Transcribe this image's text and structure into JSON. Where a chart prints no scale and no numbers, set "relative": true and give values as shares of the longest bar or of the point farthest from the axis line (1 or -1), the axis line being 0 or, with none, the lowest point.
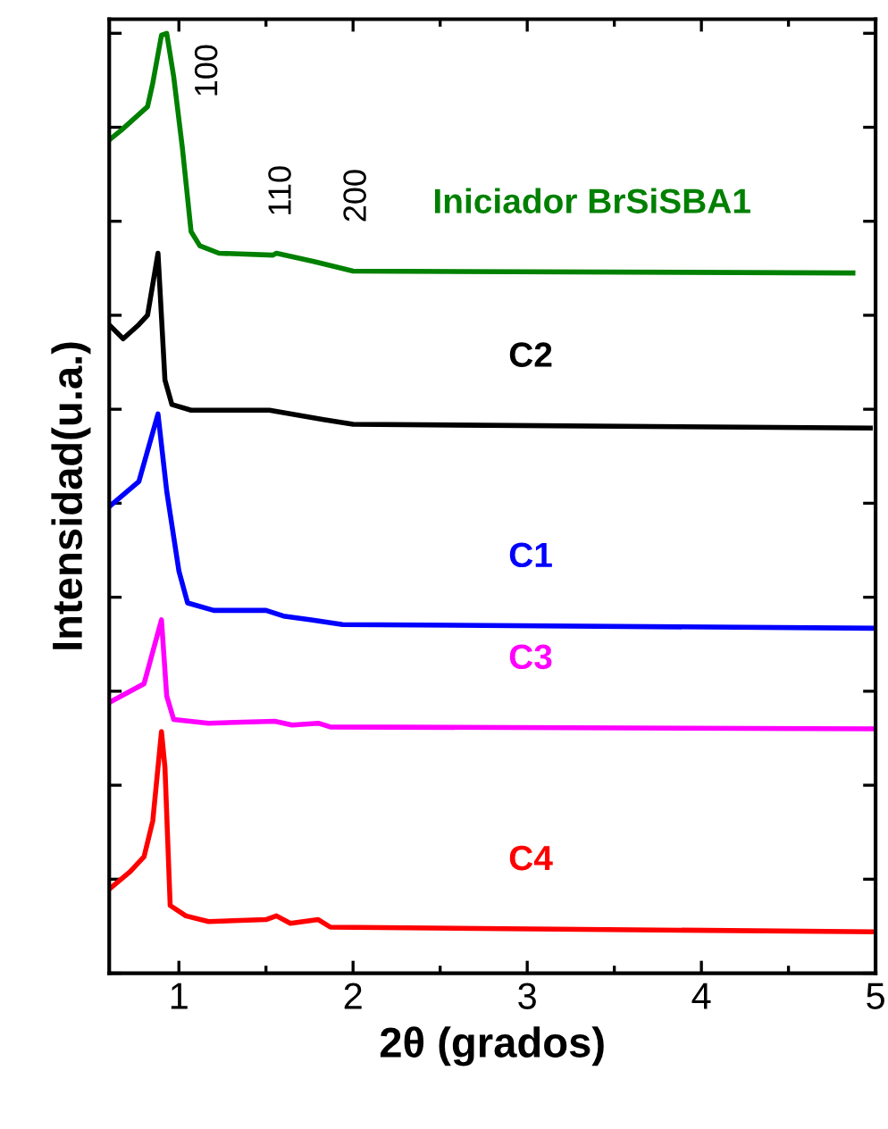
{
  "chart_data": {
    "type": "line",
    "relative": true,
    "xlabel": "2θ (grados)",
    "ylabel": "Intensidad(u.a.)",
    "xlim": [
      0.6,
      5
    ],
    "xticks": [
      1,
      2,
      3,
      4,
      5
    ],
    "grid": false,
    "legend": false,
    "marker": "none",
    "line_style": "solid",
    "annotations": [
      "100",
      "110",
      "200"
    ],
    "series": [
      {
        "name": "Iniciador BrSiSBA1",
        "color": "#008000",
        "x": [
          0.61,
          0.67,
          0.82,
          0.85,
          0.9,
          0.93,
          0.97,
          1.02,
          1.07,
          1.12,
          1.23,
          1.54,
          1.56,
          1.78,
          2.0,
          4.87
        ],
        "values": [
          0.888,
          0.897,
          0.922,
          0.947,
          0.998,
          1.0,
          0.954,
          0.878,
          0.789,
          0.774,
          0.766,
          0.764,
          0.766,
          0.757,
          0.747,
          0.745
        ]
      },
      {
        "name": "C2",
        "color": "#000000",
        "x": [
          0.61,
          0.68,
          0.77,
          0.82,
          0.88,
          0.92,
          0.96,
          1.07,
          1.52,
          1.83,
          2.0,
          4.97
        ],
        "values": [
          0.688,
          0.675,
          0.69,
          0.7,
          0.766,
          0.631,
          0.605,
          0.599,
          0.599,
          0.589,
          0.584,
          0.58
        ]
      },
      {
        "name": "C1",
        "color": "#0000ff",
        "x": [
          0.61,
          0.77,
          0.88,
          0.93,
          1.0,
          1.05,
          1.2,
          1.5,
          1.6,
          1.76,
          1.94,
          5.0
        ],
        "values": [
          0.498,
          0.523,
          0.595,
          0.513,
          0.428,
          0.394,
          0.386,
          0.386,
          0.38,
          0.376,
          0.371,
          0.367
        ]
      },
      {
        "name": "C3",
        "color": "#ff00ff",
        "x": [
          0.61,
          0.8,
          0.9,
          0.93,
          0.97,
          1.17,
          1.55,
          1.65,
          1.8,
          1.87,
          5.0
        ],
        "values": [
          0.289,
          0.308,
          0.376,
          0.295,
          0.27,
          0.266,
          0.268,
          0.264,
          0.266,
          0.262,
          0.26
        ]
      },
      {
        "name": "C4",
        "color": "#ff0000",
        "x": [
          0.61,
          0.72,
          0.8,
          0.85,
          0.9,
          0.92,
          0.95,
          1.04,
          1.17,
          1.5,
          1.56,
          1.64,
          1.8,
          1.87,
          5.0
        ],
        "values": [
          0.091,
          0.108,
          0.124,
          0.162,
          0.257,
          0.219,
          0.072,
          0.061,
          0.055,
          0.057,
          0.061,
          0.053,
          0.057,
          0.049,
          0.044
        ]
      }
    ]
  }
}
